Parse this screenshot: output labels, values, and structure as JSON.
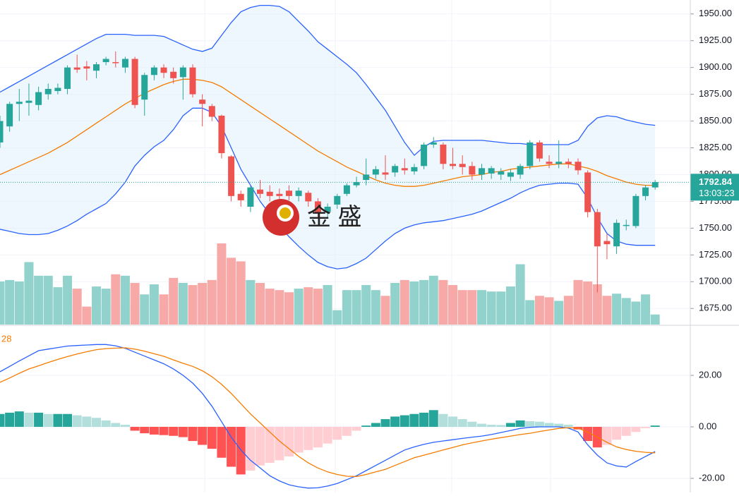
{
  "chart_data": [
    {
      "type": "candlestick",
      "categories": [
        null,
        null,
        null,
        null,
        null,
        null,
        null,
        null,
        null,
        null,
        null,
        null,
        null,
        null,
        null,
        null,
        null,
        null,
        null,
        null,
        null,
        null,
        null,
        null,
        null,
        null,
        null,
        null,
        null,
        null,
        null,
        null,
        null,
        null,
        null,
        null,
        null,
        null,
        null,
        null,
        null,
        null,
        null,
        null,
        null,
        null,
        null,
        null,
        null,
        null,
        null,
        null,
        null,
        null,
        null,
        null,
        null,
        null,
        null,
        null,
        null,
        null,
        null,
        null,
        null,
        null,
        null,
        null,
        null
      ],
      "open": [
        1830,
        1845,
        1866,
        1867,
        1865,
        1875,
        1878,
        1880,
        1900,
        1901,
        1897,
        1905,
        1905,
        1900,
        1908,
        1870,
        1893,
        1900,
        1896,
        1891,
        1900,
        1870,
        1864,
        1855,
        1817,
        1782,
        1770,
        1786,
        1784,
        1782,
        1785,
        1780,
        1783,
        1775,
        1765,
        1772,
        1782,
        1790,
        1795,
        1800,
        1802,
        1802,
        1806,
        1803,
        1808,
        1828,
        1828,
        1810,
        1810,
        1808,
        1800,
        1801,
        1800,
        1798,
        1800,
        1808,
        1830,
        1812,
        1810,
        1812,
        1812,
        1802,
        1765,
        1738,
        1733,
        1752,
        1752,
        1780,
        1788
      ],
      "high": [
        1855,
        1868,
        1880,
        1885,
        1882,
        1885,
        1885,
        1902,
        1912,
        1906,
        1905,
        1910,
        1915,
        1910,
        1910,
        1895,
        1902,
        1903,
        1900,
        1902,
        1903,
        1875,
        1866,
        1856,
        1818,
        1785,
        1790,
        1795,
        1790,
        1787,
        1790,
        1788,
        1785,
        1778,
        1773,
        1782,
        1792,
        1798,
        1815,
        1808,
        1818,
        1810,
        1815,
        1810,
        1830,
        1835,
        1830,
        1825,
        1818,
        1812,
        1810,
        1808,
        1806,
        1805,
        1810,
        1832,
        1832,
        1818,
        1832,
        1815,
        1815,
        1804,
        1768,
        1745,
        1758,
        1758,
        1782,
        1790,
        1795
      ],
      "low": [
        1825,
        1840,
        1850,
        1855,
        1860,
        1870,
        1875,
        1875,
        1895,
        1888,
        1890,
        1902,
        1900,
        1895,
        1862,
        1855,
        1888,
        1890,
        1885,
        1870,
        1872,
        1845,
        1850,
        1815,
        1775,
        1770,
        1765,
        1778,
        1775,
        1775,
        1776,
        1775,
        1770,
        1760,
        1760,
        1768,
        1780,
        1788,
        1790,
        1796,
        1795,
        1798,
        1800,
        1800,
        1805,
        1825,
        1805,
        1805,
        1800,
        1795,
        1795,
        1796,
        1795,
        1794,
        1796,
        1805,
        1812,
        1806,
        1806,
        1806,
        1800,
        1760,
        1690,
        1721,
        1726,
        1748,
        1750,
        1776,
        1786
      ],
      "close": [
        1850,
        1866,
        1868,
        1869,
        1877,
        1880,
        1881,
        1900,
        1898,
        1899,
        1903,
        1908,
        1904,
        1908,
        1865,
        1893,
        1900,
        1895,
        1890,
        1900,
        1875,
        1866,
        1854,
        1820,
        1780,
        1776,
        1788,
        1782,
        1780,
        1780,
        1780,
        1785,
        1775,
        1765,
        1770,
        1780,
        1790,
        1793,
        1800,
        1805,
        1800,
        1808,
        1804,
        1807,
        1828,
        1830,
        1810,
        1808,
        1807,
        1800,
        1806,
        1806,
        1803,
        1802,
        1808,
        1830,
        1815,
        1810,
        1812,
        1810,
        1804,
        1765,
        1733,
        1735,
        1755,
        1753,
        1780,
        1788,
        1793
      ],
      "up_color": "#26a69a",
      "down_color": "#ef5350",
      "series": [
        {
          "color": "#2962ff",
          "values": [
            1877,
            1882,
            1887,
            1892,
            1897,
            1902,
            1907,
            1912,
            1917,
            1922,
            1927,
            1931,
            1931,
            1931,
            1930,
            1930,
            1930,
            1929,
            1925,
            1921,
            1917,
            1915,
            1918,
            1930,
            1942,
            1952,
            1956,
            1958,
            1958,
            1957,
            1952,
            1943,
            1934,
            1924,
            1917,
            1910,
            1903,
            1895,
            1884,
            1872,
            1860,
            1845,
            1830,
            1818,
            1826,
            1831,
            1832,
            1832,
            1832,
            1832,
            1832,
            1831,
            1830,
            1829,
            1829,
            1828,
            1828,
            1828,
            1828,
            1828,
            1832,
            1845,
            1853,
            1855,
            1854,
            1851,
            1849,
            1847,
            1846
          ]
        },
        {
          "color": "#f57c00",
          "values": [
            1800,
            1804,
            1808,
            1812,
            1816,
            1820,
            1825,
            1830,
            1836,
            1842,
            1848,
            1854,
            1860,
            1866,
            1871,
            1876,
            1880,
            1884,
            1887,
            1889,
            1889,
            1888,
            1886,
            1882,
            1876,
            1870,
            1864,
            1858,
            1852,
            1846,
            1840,
            1834,
            1828,
            1822,
            1817,
            1812,
            1807,
            1803,
            1799,
            1795,
            1792,
            1790,
            1789,
            1789,
            1790,
            1792,
            1794,
            1796,
            1798,
            1799,
            1800,
            1802,
            1803,
            1805,
            1806,
            1807,
            1808,
            1809,
            1810,
            1810,
            1808,
            1806,
            1803,
            1799,
            1796,
            1793,
            1791,
            1790,
            1790
          ]
        },
        {
          "color": "#2962ff",
          "values": [
            1749,
            1747,
            1745,
            1744,
            1744,
            1745,
            1748,
            1752,
            1757,
            1763,
            1768,
            1773,
            1782,
            1793,
            1808,
            1818,
            1826,
            1832,
            1842,
            1855,
            1862,
            1862,
            1858,
            1845,
            1825,
            1805,
            1790,
            1775,
            1763,
            1752,
            1742,
            1733,
            1725,
            1718,
            1714,
            1712,
            1713,
            1717,
            1722,
            1730,
            1738,
            1745,
            1750,
            1753,
            1755,
            1756,
            1757,
            1759,
            1761,
            1763,
            1766,
            1770,
            1774,
            1778,
            1783,
            1787,
            1790,
            1791,
            1792,
            1792,
            1791,
            1778,
            1760,
            1745,
            1738,
            1735,
            1734,
            1734,
            1734
          ]
        }
      ],
      "band_fill": "#e3f2fd",
      "volume": [
        60,
        62,
        60,
        87,
        68,
        68,
        52,
        68,
        50,
        25,
        53,
        50,
        70,
        68,
        58,
        42,
        56,
        42,
        65,
        58,
        55,
        58,
        62,
        113,
        93,
        88,
        62,
        58,
        50,
        48,
        45,
        50,
        52,
        50,
        55,
        20,
        48,
        48,
        55,
        48,
        40,
        58,
        62,
        60,
        62,
        68,
        62,
        55,
        48,
        48,
        48,
        46,
        46,
        53,
        84,
        34,
        40,
        38,
        33,
        40,
        62,
        60,
        56,
        40,
        43,
        37,
        32,
        42,
        14
      ],
      "volume_colors": [
        "#92d2cc",
        "#f7a9a7"
      ],
      "ylim": [
        1660,
        1963
      ],
      "yticks": [
        {
          "value": 1675,
          "label": "1675.00"
        },
        {
          "value": 1700,
          "label": "1700.00"
        },
        {
          "value": 1725,
          "label": "1725.00"
        },
        {
          "value": 1750,
          "label": "1750.00"
        },
        {
          "value": 1775,
          "label": "1775.00"
        },
        {
          "value": 1800,
          "label": "1800.00"
        },
        {
          "value": 1825,
          "label": "1825.00"
        },
        {
          "value": 1850,
          "label": "1850.00"
        },
        {
          "value": 1875,
          "label": "1875.00"
        },
        {
          "value": 1900,
          "label": "1900.00"
        },
        {
          "value": 1925,
          "label": "1925.00"
        },
        {
          "value": 1950,
          "label": "1950.00"
        }
      ],
      "last_price": {
        "value": 1792.84,
        "label": "1792.84"
      },
      "countdown": "13:03:23",
      "watermark": "金 盛",
      "grid": true
    },
    {
      "type": "macd",
      "indicator_label": "28",
      "histogram": [
        5,
        5.5,
        6,
        5.5,
        5.5,
        5,
        5,
        5,
        4.5,
        4,
        3.5,
        2.5,
        1.5,
        0.8,
        -1.5,
        -2.5,
        -3,
        -3.2,
        -3.5,
        -4,
        -5.5,
        -7,
        -8.5,
        -12,
        -15.5,
        -18.5,
        -17,
        -15,
        -14,
        -13,
        -11.5,
        -10,
        -9,
        -8,
        -6.5,
        -5,
        -3.5,
        -1.5,
        0.5,
        1.5,
        3,
        4,
        4.5,
        5,
        5.5,
        6.5,
        5,
        4,
        3,
        2,
        1.2,
        0.8,
        0.7,
        1.5,
        2.5,
        2.2,
        2,
        1.5,
        1.2,
        0.8,
        -1,
        -5.5,
        -8,
        -7,
        -5,
        -3.5,
        -2,
        -0.5,
        0.5
      ],
      "histogram_colors": [
        "#26a69a",
        "#b2dfdb",
        "#ff5252",
        "#ffcdd2"
      ],
      "series": [
        {
          "color": "#2962ff",
          "values": [
            21.4,
            23.5,
            25.6,
            27.6,
            29.6,
            30.2,
            30.8,
            31.4,
            31.6,
            31.8,
            32,
            32,
            31.5,
            30.5,
            29,
            27.5,
            26,
            24.5,
            22.5,
            20,
            17,
            13,
            8,
            2,
            -4,
            -9,
            -13,
            -16,
            -19,
            -21,
            -22.5,
            -23.3,
            -23.8,
            -23.7,
            -23,
            -22,
            -20.5,
            -19,
            -17,
            -15,
            -13,
            -11,
            -9,
            -7.8,
            -6.8,
            -6,
            -5.5,
            -5,
            -4.5,
            -4,
            -3.6,
            -3,
            -2.2,
            -1.4,
            -0.6,
            -0.2,
            0,
            0,
            0,
            -0.5,
            -2,
            -7,
            -11,
            -14,
            -15.2,
            -15.6,
            -13.5,
            -11.5,
            -9.6
          ]
        },
        {
          "color": "#f57c00",
          "values": [
            17.3,
            19,
            20.8,
            22.5,
            23.7,
            25,
            26.2,
            27.3,
            28.3,
            29.2,
            30,
            30.4,
            30.6,
            30.7,
            30.2,
            29.4,
            28.4,
            27.4,
            26,
            24.7,
            23.5,
            21.8,
            19.5,
            16.5,
            13,
            9,
            5,
            1.5,
            -2,
            -5.5,
            -8.5,
            -11.5,
            -14,
            -16,
            -17.5,
            -18.5,
            -19.2,
            -19.3,
            -18.5,
            -17.5,
            -16.5,
            -15,
            -13.5,
            -12,
            -11,
            -10,
            -9,
            -8,
            -7,
            -6.2,
            -5.5,
            -4.8,
            -4.2,
            -3.6,
            -3,
            -2.5,
            -1.8,
            -1.2,
            -0.6,
            -0.3,
            -0.5,
            -2,
            -4,
            -6,
            -7.8,
            -8.8,
            -9.5,
            -9.9,
            -10.1
          ]
        }
      ],
      "ylim": [
        -25.5,
        39.2
      ],
      "yticks": [
        {
          "value": -20,
          "label": "-20.00"
        },
        {
          "value": 0,
          "label": "0.00"
        },
        {
          "value": 20,
          "label": "20.00"
        }
      ],
      "grid": true
    }
  ]
}
